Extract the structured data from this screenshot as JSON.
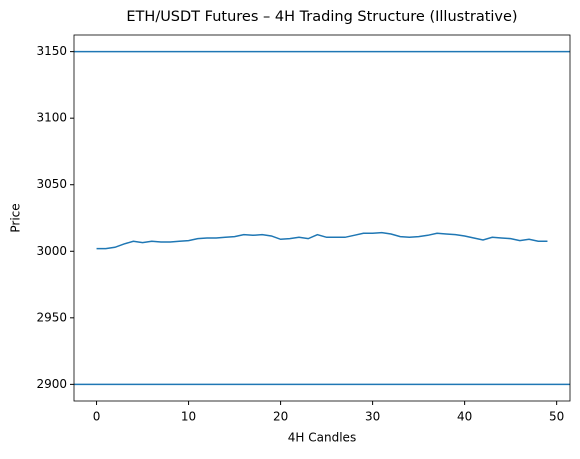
{
  "chart_data": {
    "type": "line",
    "title": "ETH/USDT Futures – 4H Trading Structure (Illustrative)",
    "x_label": "4H Candles",
    "y_label": "Price",
    "x": [
      0,
      1,
      2,
      3,
      4,
      5,
      6,
      7,
      8,
      9,
      10,
      11,
      12,
      13,
      14,
      15,
      16,
      17,
      18,
      19,
      20,
      21,
      22,
      23,
      24,
      25,
      26,
      27,
      28,
      29,
      30,
      31,
      32,
      33,
      34,
      35,
      36,
      37,
      38,
      39,
      40,
      41,
      42,
      43,
      44,
      45,
      46,
      47,
      48,
      49
    ],
    "series": [
      {
        "color": "#1f77b4",
        "values": [
          3002,
          3002,
          3003,
          3005.5,
          3007.5,
          3006.5,
          3007.5,
          3007,
          3007,
          3007.5,
          3008,
          3009.5,
          3010,
          3010,
          3010.5,
          3011,
          3012.5,
          3012,
          3012.5,
          3011.5,
          3009,
          3009.5,
          3010.5,
          3009.5,
          3012.5,
          3010.5,
          3010.5,
          3010.5,
          3012,
          3013.5,
          3013.5,
          3014,
          3013,
          3011,
          3010.5,
          3011,
          3012,
          3013.5,
          3013,
          3012.5,
          3011.5,
          3010,
          3008.5,
          3010.5,
          3010,
          3009.5,
          3008,
          3009,
          3007.5,
          3007.5
        ]
      }
    ],
    "hlines": [
      3150,
      2900
    ],
    "hline_color": "#1f77b4",
    "xlim": [
      -2.45,
      51.45
    ],
    "ylim": [
      2887.5,
      3162.5
    ],
    "xticks": [
      0,
      10,
      20,
      30,
      40,
      50
    ],
    "yticks": [
      2900,
      2950,
      3000,
      3050,
      3100,
      3150
    ],
    "grid": false
  }
}
